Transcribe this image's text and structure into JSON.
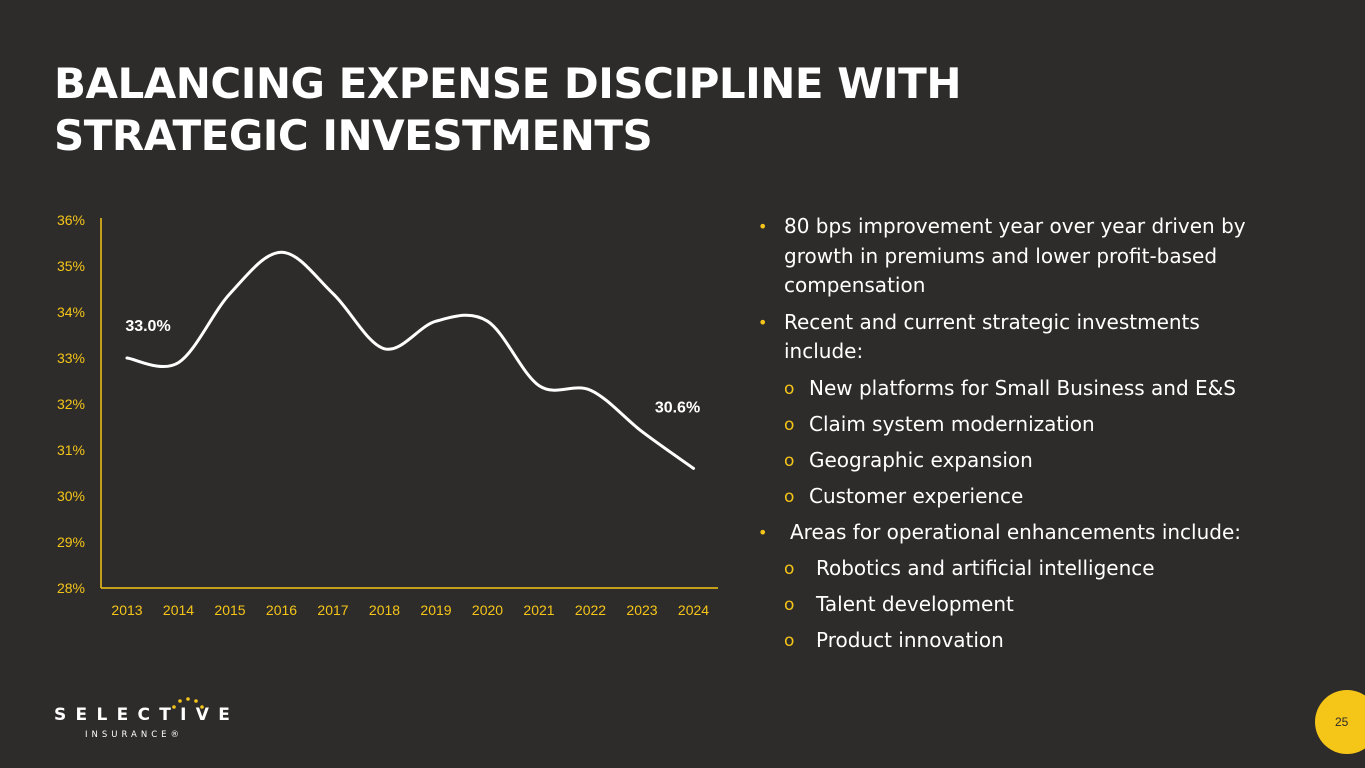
{
  "title": "BALANCING EXPENSE DISCIPLINE WITH STRATEGIC INVESTMENTS",
  "chart_data": {
    "type": "line",
    "categories": [
      "2013",
      "2014",
      "2015",
      "2016",
      "2017",
      "2018",
      "2019",
      "2020",
      "2021",
      "2022",
      "2023",
      "2024"
    ],
    "values": [
      33.0,
      32.9,
      34.4,
      35.3,
      34.4,
      33.2,
      33.8,
      33.8,
      32.4,
      32.3,
      31.4,
      30.6
    ],
    "ylim": [
      28,
      36
    ],
    "yticks": [
      "28%",
      "29%",
      "30%",
      "31%",
      "32%",
      "33%",
      "34%",
      "35%",
      "36%"
    ],
    "data_labels": [
      {
        "index": 0,
        "text": "33.0%"
      },
      {
        "index": 11,
        "text": "30.6%"
      }
    ],
    "grid": false,
    "line_color": "#ffffff",
    "axis_color": "#f5c518",
    "tick_color": "#f5c518"
  },
  "bullets": [
    {
      "level": 1,
      "text": "80 bps improvement year over year driven by growth in premiums and lower profit-based compensation"
    },
    {
      "level": 1,
      "text": "Recent and current strategic investments include:"
    },
    {
      "level": 2,
      "text": "New platforms for Small Business and E&S"
    },
    {
      "level": 2,
      "text": "Claim system modernization"
    },
    {
      "level": 2,
      "text": "Geographic expansion"
    },
    {
      "level": 2,
      "text": "Customer experience"
    },
    {
      "level": 1,
      "text": "Areas for operational enhancements include:"
    },
    {
      "level": 2,
      "text": "Robotics and artificial intelligence"
    },
    {
      "level": 2,
      "text": "Talent development"
    },
    {
      "level": 2,
      "text": "Product innovation"
    }
  ],
  "bullet_symbols": {
    "level1": "•",
    "level2": "o"
  },
  "logo": {
    "name": "SELECTIVE",
    "sub": "INSURANCE®"
  },
  "page_number": "25",
  "colors": {
    "background": "#2e2c2b",
    "accent": "#f5c518",
    "text": "#ffffff"
  }
}
